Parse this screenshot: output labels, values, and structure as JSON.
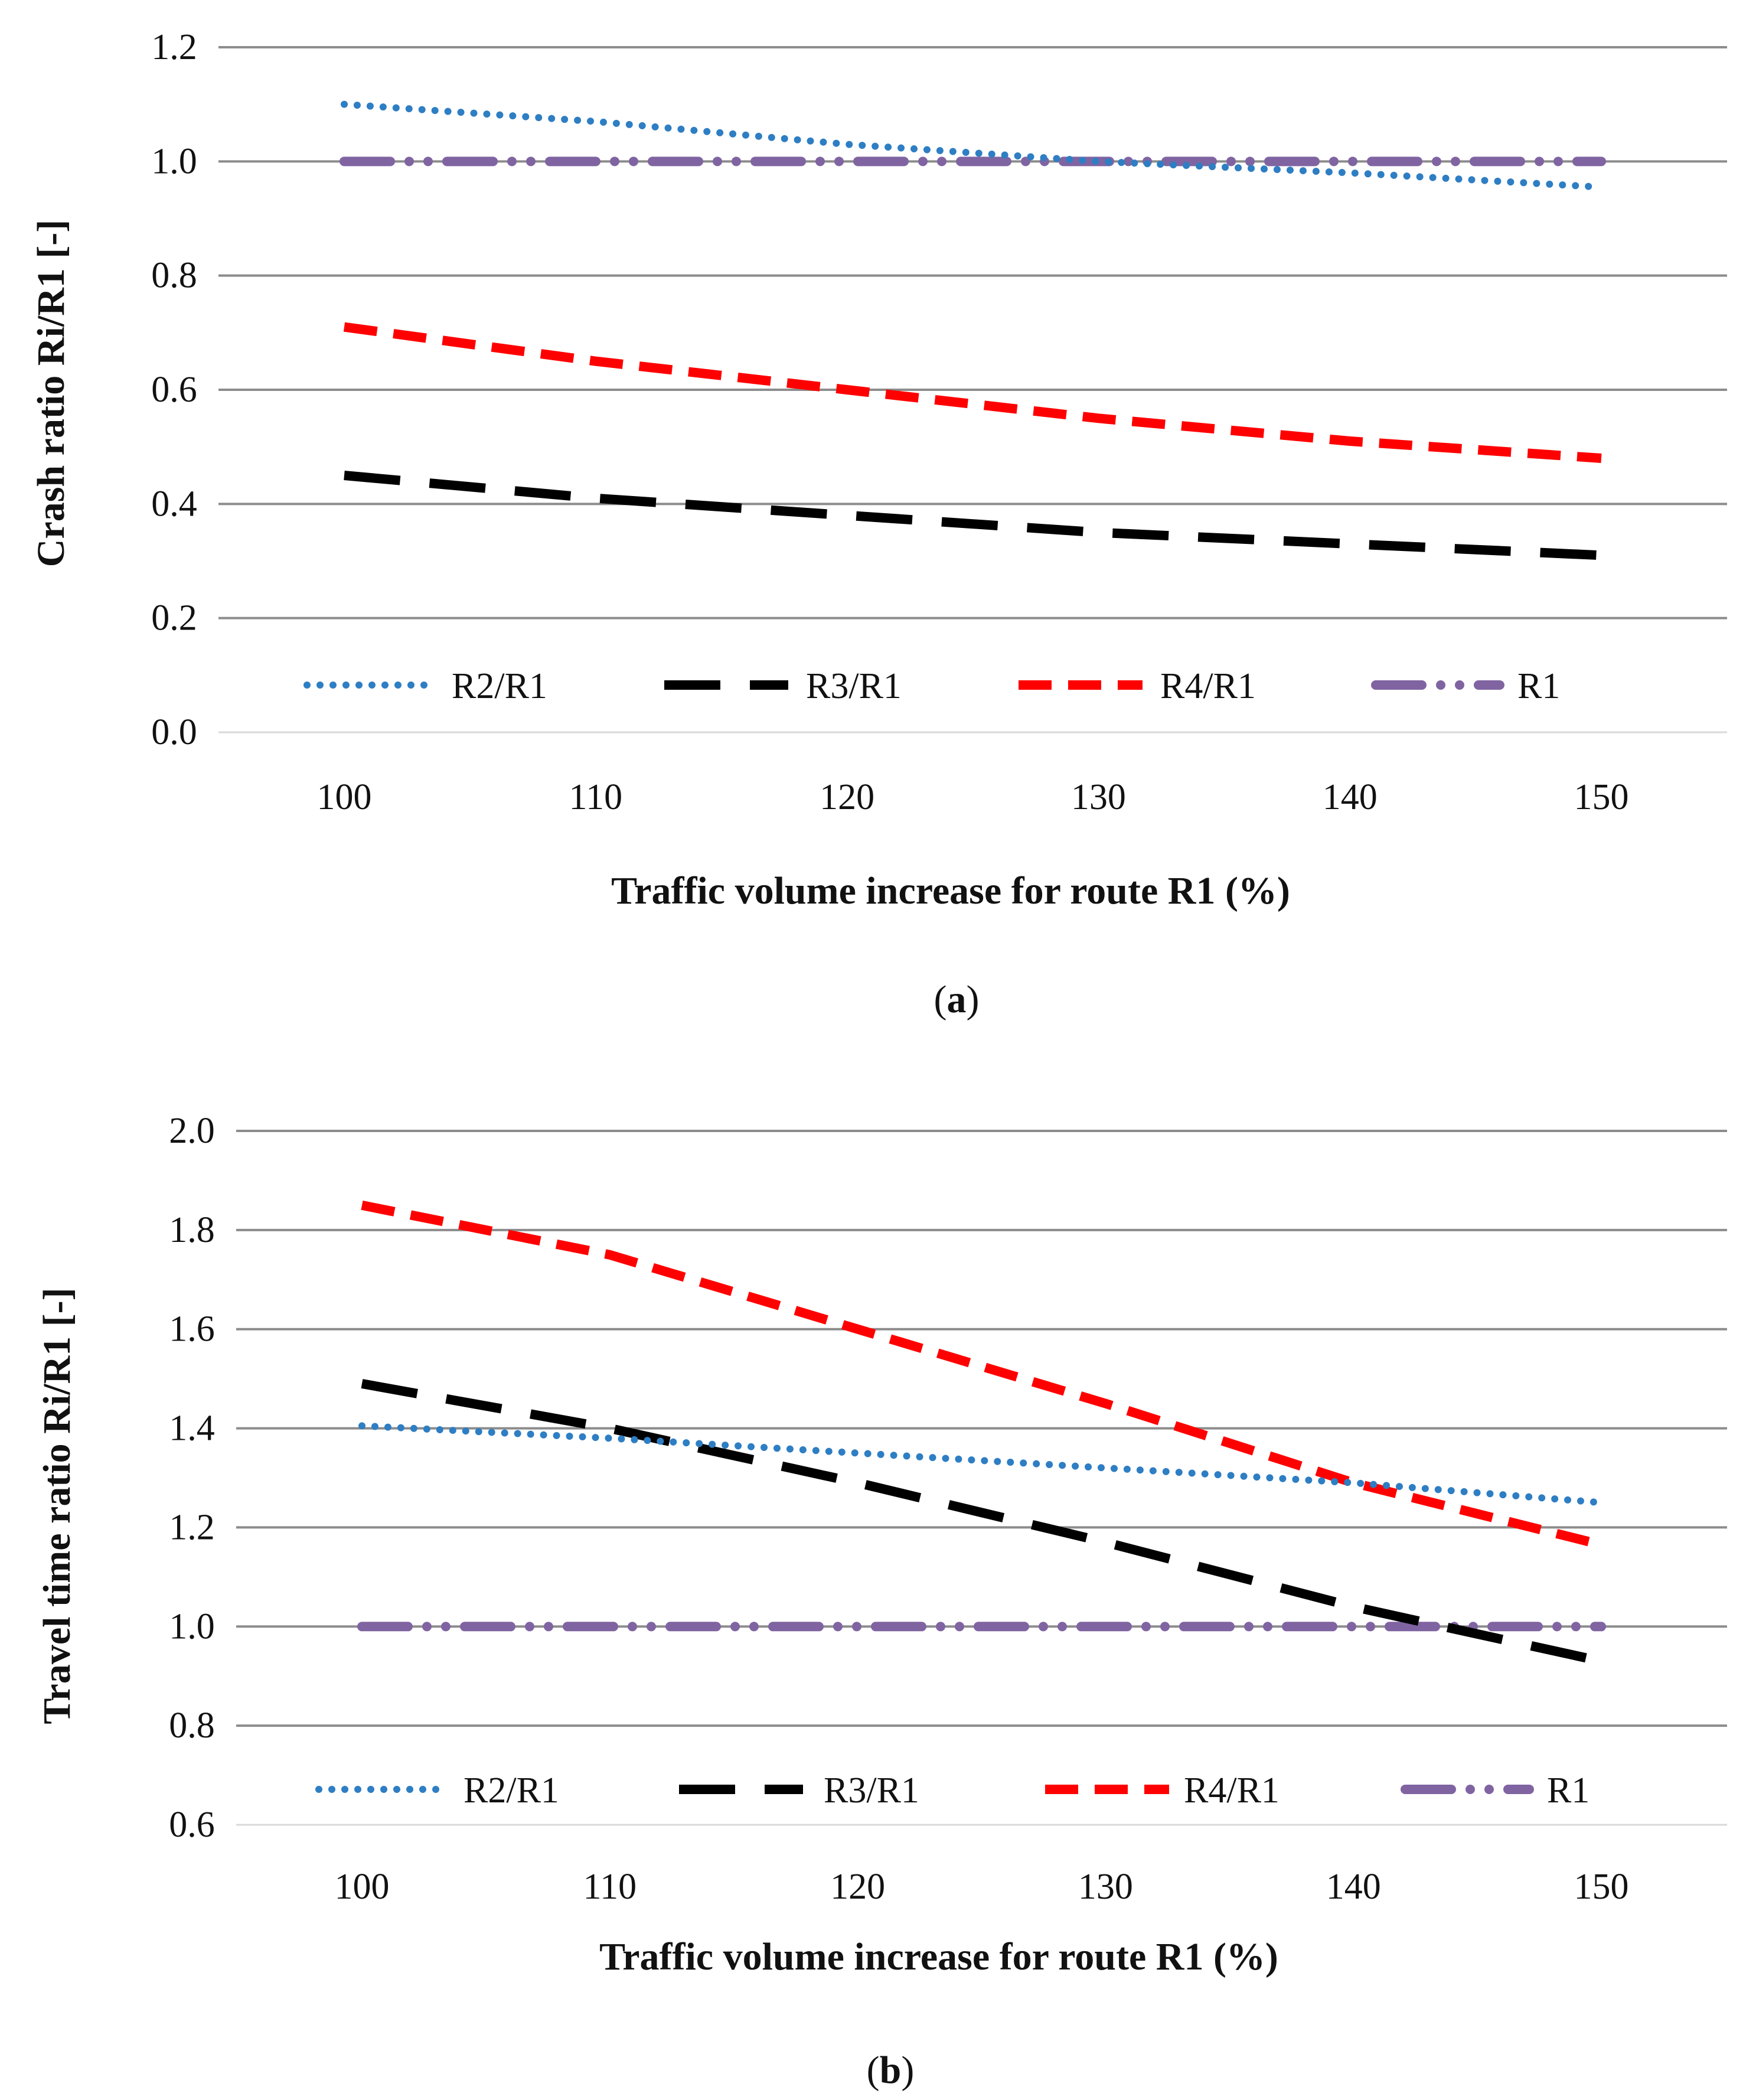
{
  "chart_data": [
    {
      "type": "line",
      "panel": "a",
      "x": [
        100,
        110,
        120,
        130,
        140,
        150
      ],
      "xlabel": "Traffic volume increase for route R1 (%)",
      "ylabel": "Crash ratio Ri/R1 [-]",
      "ylim": [
        0.0,
        1.2
      ],
      "yticks": [
        "0.0",
        "0.2",
        "0.4",
        "0.6",
        "0.8",
        "1.0",
        "1.2"
      ],
      "xticks": [
        "100",
        "110",
        "120",
        "130",
        "140",
        "150"
      ],
      "grid": true,
      "legend_position": "bottom",
      "series": [
        {
          "name": "R2/R1",
          "color": "#2E7EC3",
          "style": "dotted",
          "values": [
            1.1,
            1.07,
            1.03,
            1.0,
            0.98,
            0.955
          ]
        },
        {
          "name": "R3/R1",
          "color": "#000000",
          "style": "long-dash",
          "values": [
            0.45,
            0.41,
            0.38,
            0.35,
            0.33,
            0.31
          ]
        },
        {
          "name": "R4/R1",
          "color": "#FF0000",
          "style": "dash",
          "values": [
            0.71,
            0.65,
            0.6,
            0.55,
            0.51,
            0.48
          ]
        },
        {
          "name": "R1",
          "color": "#8064A2",
          "style": "dash-dot",
          "values": [
            1.0,
            1.0,
            1.0,
            1.0,
            1.0,
            1.0
          ]
        }
      ]
    },
    {
      "type": "line",
      "panel": "b",
      "x": [
        100,
        110,
        120,
        130,
        140,
        150
      ],
      "xlabel": "Traffic volume increase for  route R1 (%)",
      "ylabel": "Travel time ratio Ri/R1 [-]",
      "ylim": [
        0.6,
        2.0
      ],
      "yticks": [
        "0.6",
        "0.8",
        "1.0",
        "1.2",
        "1.4",
        "1.6",
        "1.8",
        "2.0"
      ],
      "xticks": [
        "100",
        "110",
        "120",
        "130",
        "140",
        "150"
      ],
      "grid": true,
      "legend_position": "bottom",
      "series": [
        {
          "name": "R2/R1",
          "color": "#2E7EC3",
          "style": "dotted",
          "values": [
            1.405,
            1.38,
            1.35,
            1.32,
            1.29,
            1.25
          ]
        },
        {
          "name": "R3/R1",
          "color": "#000000",
          "style": "long-dash",
          "values": [
            1.49,
            1.4,
            1.29,
            1.17,
            1.04,
            0.93
          ]
        },
        {
          "name": "R4/R1",
          "color": "#FF0000",
          "style": "dash",
          "values": [
            1.85,
            1.75,
            1.6,
            1.45,
            1.29,
            1.165
          ]
        },
        {
          "name": "R1",
          "color": "#8064A2",
          "style": "dash-dot",
          "values": [
            1.0,
            1.0,
            1.0,
            1.0,
            1.0,
            1.0
          ]
        }
      ]
    }
  ],
  "captions": {
    "a": {
      "open": "(",
      "letter": "a",
      "close": ")"
    },
    "b": {
      "open": "(",
      "letter": "b",
      "close": ")"
    }
  }
}
